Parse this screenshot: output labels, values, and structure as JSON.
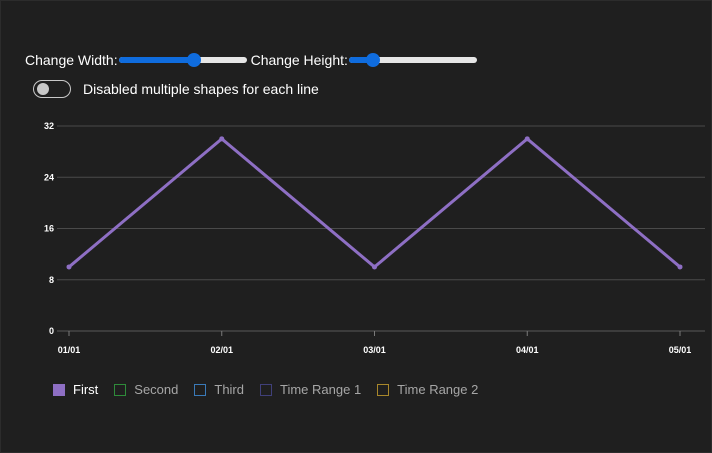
{
  "controls": {
    "width_label": "Change Width:",
    "width_value": 0.6,
    "height_label": "Change Height:",
    "height_value": 0.15,
    "toggle_label": "Disabled multiple shapes for each line",
    "toggle_on": false
  },
  "colors": {
    "background": "#1f1f1f",
    "slider_accent": "#0f6cde",
    "grid": "#4a4a4a",
    "series_first": "#8e6fc4"
  },
  "chart_data": {
    "type": "line",
    "x": [
      "01/01",
      "02/01",
      "03/01",
      "04/01",
      "05/01"
    ],
    "series": [
      {
        "name": "First",
        "values": [
          10,
          30,
          10,
          30,
          10
        ]
      }
    ],
    "ylim": [
      0,
      32
    ],
    "yticks": [
      "0",
      "8",
      "16",
      "24",
      "32"
    ],
    "grid": true,
    "legend_position": "bottom-left",
    "legend": [
      {
        "name": "First",
        "color": "#8e6fc4",
        "active": true
      },
      {
        "name": "Second",
        "color": "#2e8b3a",
        "active": false
      },
      {
        "name": "Third",
        "color": "#3a7ab8",
        "active": false
      },
      {
        "name": "Time Range 1",
        "color": "#40407a",
        "active": false
      },
      {
        "name": "Time Range 2",
        "color": "#a8872a",
        "active": false
      }
    ]
  }
}
